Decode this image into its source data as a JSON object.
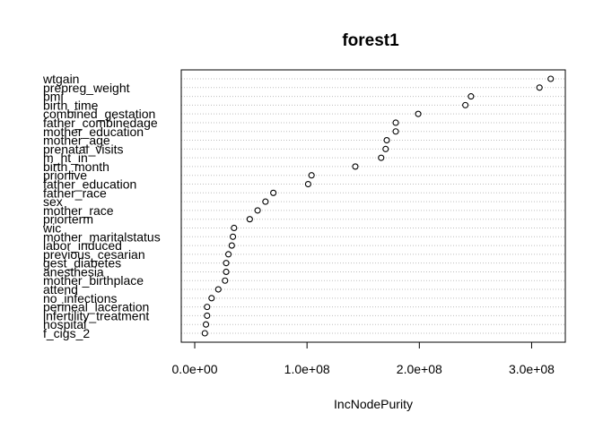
{
  "chart_data": {
    "type": "scatter",
    "title": "forest1",
    "xlabel": "IncNodePurity",
    "ylabel": "",
    "xlim": [
      -12000000,
      330000000
    ],
    "xticks": [
      0,
      100000000,
      200000000,
      300000000
    ],
    "xtick_labels": [
      "0.0e+00",
      "1.0e+08",
      "2.0e+08",
      "3.0e+08"
    ],
    "grid": "horizontal dotted",
    "categories": [
      "wtgain",
      "prepreg_weight",
      "bmi",
      "birth_time",
      "combined_gestation",
      "father_combinedage",
      "mother_education",
      "mother_age",
      "prenatal_visits",
      "m_ht_in",
      "birth_month",
      "priorlive",
      "father_education",
      "father_race",
      "sex",
      "mother_race",
      "priorterm",
      "wic",
      "mother_maritalstatus",
      "labor_induced",
      "previous_cesarian",
      "gest_diabetes",
      "anesthesia",
      "mother_birthplace",
      "attend",
      "no_infections",
      "perineal_laceration",
      "infertility_treatment",
      "hospital",
      "f_cigs_2"
    ],
    "values": [
      317000000,
      307000000,
      246000000,
      241000000,
      199000000,
      179000000,
      179000000,
      171000000,
      170000000,
      166000000,
      143000000,
      104000000,
      101000000,
      70000000,
      63000000,
      56000000,
      49000000,
      35000000,
      34000000,
      33000000,
      30000000,
      28000000,
      28000000,
      27000000,
      21000000,
      15000000,
      11000000,
      11000000,
      10000000,
      9000000
    ]
  }
}
